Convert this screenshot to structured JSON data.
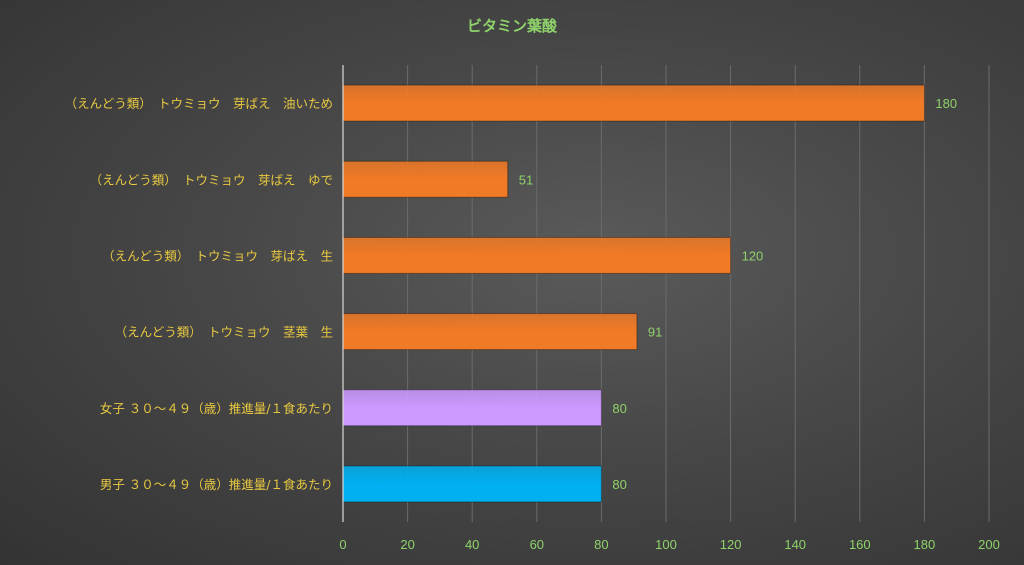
{
  "chart_data": {
    "type": "bar",
    "orientation": "horizontal",
    "title": "ビタミン葉酸",
    "categories": [
      "（えんどう類）　トウミョウ　芽ばえ　油いため",
      "（えんどう類）　トウミョウ　芽ばえ　ゆで",
      "（えんどう類）　トウミョウ　芽ばえ　生",
      "（えんどう類）　トウミョウ　茎葉　生",
      "女子 ３０～４９（歳）推進量/１食あたり",
      "男子 ３０～４９（歳）推進量/１食あたり"
    ],
    "values": [
      180,
      51,
      120,
      91,
      80,
      80
    ],
    "bar_colors": [
      "#f07a26",
      "#f07a26",
      "#f07a26",
      "#f07a26",
      "#cc99ff",
      "#00b0f0"
    ],
    "xlim": [
      0,
      200
    ],
    "xticks": [
      "0",
      "20",
      "40",
      "60",
      "80",
      "100",
      "120",
      "140",
      "160",
      "180",
      "200"
    ],
    "grid": true,
    "legend": "none",
    "colors": {
      "title": "#8fd26a",
      "category_label": "#e8c840",
      "tick_label": "#8fd26a",
      "data_label": "#8fd26a",
      "gridline": "#6b6b6b",
      "axis": "#d9d9d9"
    }
  }
}
